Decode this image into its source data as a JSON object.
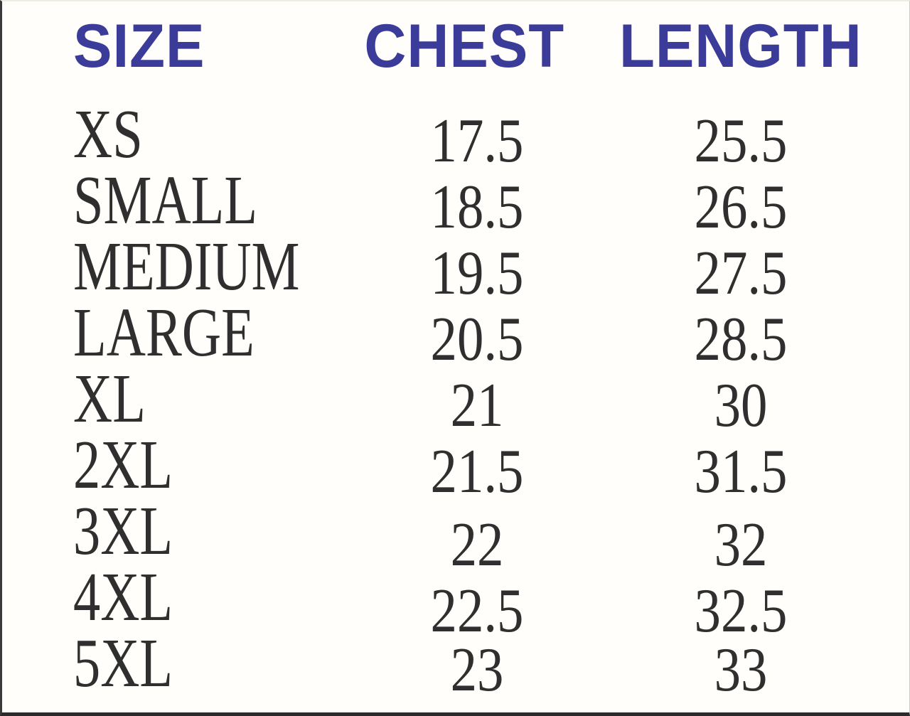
{
  "colors": {
    "header_text": "#3B3B99",
    "body_text": "#2F2F2F",
    "background": "#FFFEFB"
  },
  "chart_data": {
    "type": "table",
    "columns": [
      "SIZE",
      "CHEST",
      "LENGTH"
    ],
    "rows": [
      [
        "XS",
        17.5,
        25.5
      ],
      [
        "SMALL",
        18.5,
        26.5
      ],
      [
        "MEDIUM",
        19.5,
        27.5
      ],
      [
        "LARGE",
        20.5,
        28.5
      ],
      [
        "XL",
        21,
        30
      ],
      [
        "2XL",
        21.5,
        31.5
      ],
      [
        "3XL",
        22,
        32
      ],
      [
        "4XL",
        22.5,
        32.5
      ],
      [
        "5XL",
        23,
        33
      ]
    ]
  }
}
